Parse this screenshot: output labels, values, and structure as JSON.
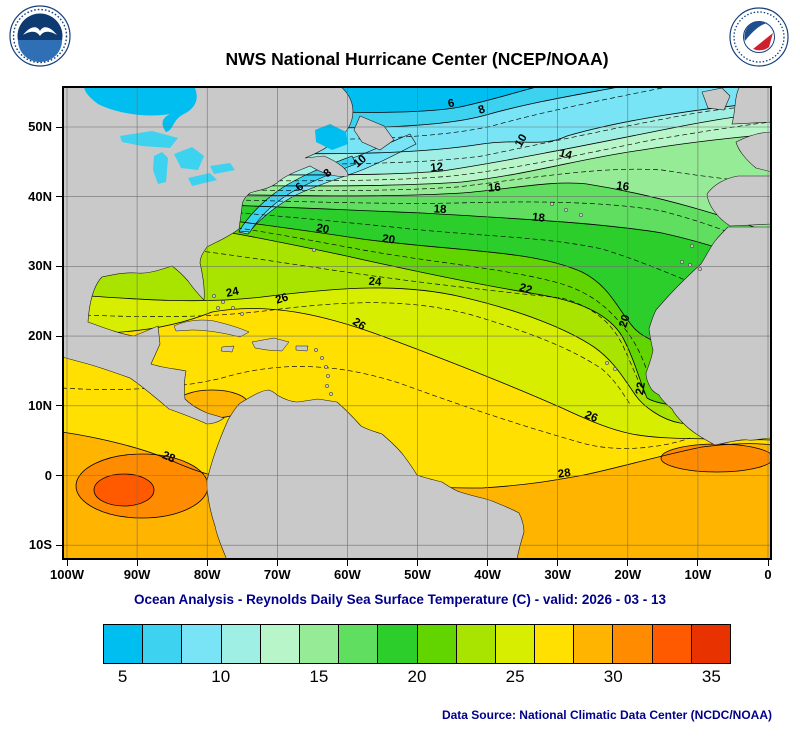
{
  "header": {
    "title": "NWS National Hurricane Center (NCEP/NOAA)",
    "logos": {
      "left": "noaa-emblem",
      "right": "nws-emblem"
    }
  },
  "map": {
    "caption": "Ocean Analysis - Reynolds Daily Sea Surface Temperature (C) - valid: 2026 - 03 - 13",
    "land_color": "#c9c9c9",
    "grid_color": "#707070",
    "axes": {
      "lat_ticks": [
        {
          "lat": 50,
          "label": "50N"
        },
        {
          "lat": 40,
          "label": "40N"
        },
        {
          "lat": 30,
          "label": "30N"
        },
        {
          "lat": 20,
          "label": "20N"
        },
        {
          "lat": 10,
          "label": "10N"
        },
        {
          "lat": 0,
          "label": "0"
        },
        {
          "lat": -10,
          "label": "10S"
        }
      ],
      "lon_ticks": [
        {
          "lon": 100,
          "label": "100W"
        },
        {
          "lon": 90,
          "label": "90W"
        },
        {
          "lon": 80,
          "label": "80W"
        },
        {
          "lon": 70,
          "label": "70W"
        },
        {
          "lon": 60,
          "label": "60W"
        },
        {
          "lon": 50,
          "label": "50W"
        },
        {
          "lon": 40,
          "label": "40W"
        },
        {
          "lon": 30,
          "label": "30W"
        },
        {
          "lon": 20,
          "label": "20W"
        },
        {
          "lon": 10,
          "label": "10W"
        },
        {
          "lon": 0,
          "label": "0"
        }
      ]
    }
  },
  "colorbar": {
    "min": 4,
    "max": 36,
    "step": 2,
    "ticks": [
      5,
      10,
      15,
      20,
      25,
      30,
      35
    ],
    "colors": [
      "#00bff0",
      "#3cd2f0",
      "#78e4f5",
      "#a0efe4",
      "#b8f5c8",
      "#96ec96",
      "#60de60",
      "#2cce2c",
      "#62d400",
      "#a8e400",
      "#d8ee00",
      "#ffe000",
      "#ffb400",
      "#ff8c00",
      "#ff5a00",
      "#e83200"
    ]
  },
  "footer": {
    "data_source": "Data Source: National Climatic Data Center (NCDC/NOAA)"
  },
  "chart_data": {
    "type": "heatmap",
    "title": "NWS National Hurricane Center (NCEP/NOAA)",
    "subtitle": "Ocean Analysis - Reynolds Daily Sea Surface Temperature (C) - valid: 2026 - 03 - 13",
    "variable": "Reynolds Daily Sea Surface Temperature",
    "units": "C",
    "valid_date": "2026 - 03 - 13",
    "lon_range_deg_west": [
      100,
      0
    ],
    "lat_range_deg_north": [
      -12,
      56
    ],
    "grid_interval_deg": 10,
    "colorbar_range_c": [
      4,
      36
    ],
    "colorbar_tick_labels": [
      5,
      10,
      15,
      20,
      25,
      30,
      35
    ],
    "contour_interval_c": 2,
    "contour_labels": [
      {
        "t": 6,
        "lon_w": 45.1,
        "lat_n": 52.9,
        "rot": -12
      },
      {
        "t": 8,
        "lon_w": 40.7,
        "lat_n": 52.0,
        "rot": -18
      },
      {
        "t": 10,
        "lon_w": 34.8,
        "lat_n": 47.8,
        "rot": -60
      },
      {
        "t": 12,
        "lon_w": 47.2,
        "lat_n": 43.7,
        "rot": -6
      },
      {
        "t": 14,
        "lon_w": 29.0,
        "lat_n": 45.6,
        "rot": 14
      },
      {
        "t": 6,
        "lon_w": 66.5,
        "lat_n": 41.0,
        "rot": -40
      },
      {
        "t": 8,
        "lon_w": 62.5,
        "lat_n": 43.0,
        "rot": -40
      },
      {
        "t": 10,
        "lon_w": 57.9,
        "lat_n": 44.7,
        "rot": -40
      },
      {
        "t": 16,
        "lon_w": 39.0,
        "lat_n": 40.8,
        "rot": -4
      },
      {
        "t": 16,
        "lon_w": 20.8,
        "lat_n": 41.0,
        "rot": 8
      },
      {
        "t": 18,
        "lon_w": 46.8,
        "lat_n": 37.7,
        "rot": 3
      },
      {
        "t": 18,
        "lon_w": 32.8,
        "lat_n": 36.5,
        "rot": 6
      },
      {
        "t": 20,
        "lon_w": 63.6,
        "lat_n": 34.9,
        "rot": 10
      },
      {
        "t": 20,
        "lon_w": 54.2,
        "lat_n": 33.4,
        "rot": 8
      },
      {
        "t": 20,
        "lon_w": 20.0,
        "lat_n": 22.0,
        "rot": -72
      },
      {
        "t": 22,
        "lon_w": 34.7,
        "lat_n": 26.3,
        "rot": 16
      },
      {
        "t": 22,
        "lon_w": 17.7,
        "lat_n": 12.4,
        "rot": -80
      },
      {
        "t": 24,
        "lon_w": 76.3,
        "lat_n": 25.8,
        "rot": -12
      },
      {
        "t": 24,
        "lon_w": 56.1,
        "lat_n": 27.3,
        "rot": 4
      },
      {
        "t": 26,
        "lon_w": 69.2,
        "lat_n": 24.9,
        "rot": -18
      },
      {
        "t": 26,
        "lon_w": 58.6,
        "lat_n": 21.3,
        "rot": 33
      },
      {
        "t": 26,
        "lon_w": 25.4,
        "lat_n": 8.0,
        "rot": 22
      },
      {
        "t": 28,
        "lon_w": 85.7,
        "lat_n": 2.2,
        "rot": 24
      },
      {
        "t": 28,
        "lon_w": 29.0,
        "lat_n": -0.2,
        "rot": -8
      }
    ]
  }
}
